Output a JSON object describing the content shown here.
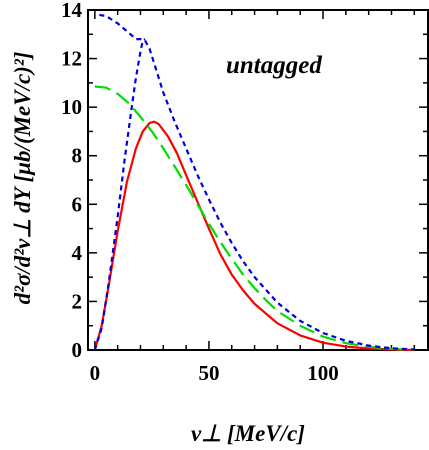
{
  "chart_data": {
    "type": "line",
    "xlabel": "v⊥ [MeV/c]",
    "ylabel": "d²σ/d²v⊥ dY [μb/(MeV/c)²]",
    "annotation": "untagged",
    "xlim": [
      -3,
      146
    ],
    "ylim": [
      0,
      14
    ],
    "x_ticks": [
      0,
      50,
      100
    ],
    "y_ticks": [
      0,
      2,
      4,
      6,
      8,
      10,
      12,
      14
    ],
    "grid": false,
    "series": [
      {
        "color": "#ff0000",
        "dash": "solid",
        "points": [
          [
            0,
            0
          ],
          [
            3,
            1.0
          ],
          [
            6,
            2.6
          ],
          [
            10,
            4.9
          ],
          [
            14,
            6.9
          ],
          [
            18,
            8.3
          ],
          [
            21,
            9.0
          ],
          [
            24,
            9.35
          ],
          [
            26,
            9.4
          ],
          [
            28,
            9.3
          ],
          [
            32,
            8.8
          ],
          [
            36,
            8.1
          ],
          [
            40,
            7.2
          ],
          [
            45,
            6.1
          ],
          [
            50,
            5.0
          ],
          [
            55,
            3.95
          ],
          [
            60,
            3.1
          ],
          [
            65,
            2.45
          ],
          [
            70,
            1.9
          ],
          [
            80,
            1.1
          ],
          [
            90,
            0.6
          ],
          [
            100,
            0.3
          ],
          [
            110,
            0.14
          ],
          [
            120,
            0.06
          ],
          [
            130,
            0.02
          ],
          [
            140,
            0.0
          ]
        ]
      },
      {
        "color": "#00dd00",
        "dash": "long-dash",
        "points": [
          [
            0,
            10.85
          ],
          [
            5,
            10.8
          ],
          [
            10,
            10.55
          ],
          [
            15,
            10.15
          ],
          [
            20,
            9.6
          ],
          [
            25,
            9.0
          ],
          [
            30,
            8.3
          ],
          [
            35,
            7.55
          ],
          [
            40,
            6.8
          ],
          [
            45,
            6.0
          ],
          [
            50,
            5.2
          ],
          [
            55,
            4.45
          ],
          [
            60,
            3.75
          ],
          [
            65,
            3.1
          ],
          [
            70,
            2.55
          ],
          [
            75,
            2.05
          ],
          [
            80,
            1.6
          ],
          [
            90,
            1.0
          ],
          [
            100,
            0.55
          ],
          [
            110,
            0.28
          ],
          [
            120,
            0.13
          ],
          [
            130,
            0.05
          ],
          [
            140,
            0.01
          ]
        ]
      },
      {
        "color": "#0000dd",
        "dash": "short-dash",
        "points": [
          [
            2,
            13.8
          ],
          [
            5,
            13.75
          ],
          [
            10,
            13.45
          ],
          [
            15,
            13.05
          ],
          [
            18,
            12.8
          ],
          [
            20,
            12.8
          ],
          [
            22,
            12.75
          ],
          [
            24,
            12.4
          ],
          [
            27,
            11.5
          ],
          [
            30,
            10.6
          ],
          [
            35,
            9.4
          ],
          [
            40,
            8.3
          ],
          [
            45,
            7.2
          ],
          [
            50,
            6.2
          ],
          [
            55,
            5.25
          ],
          [
            60,
            4.4
          ],
          [
            65,
            3.65
          ],
          [
            70,
            3.0
          ],
          [
            80,
            1.95
          ],
          [
            90,
            1.2
          ],
          [
            100,
            0.7
          ],
          [
            110,
            0.38
          ],
          [
            120,
            0.18
          ],
          [
            130,
            0.07
          ],
          [
            140,
            0.02
          ]
        ]
      },
      {
        "color": "#0000dd",
        "dash": "short-dash",
        "points": [
          [
            0,
            0
          ],
          [
            3,
            0.9
          ],
          [
            6,
            2.7
          ],
          [
            10,
            5.5
          ],
          [
            13,
            7.8
          ],
          [
            16,
            9.9
          ],
          [
            18,
            11.2
          ],
          [
            20,
            12.3
          ],
          [
            21,
            12.75
          ],
          [
            22,
            12.8
          ]
        ]
      }
    ]
  }
}
